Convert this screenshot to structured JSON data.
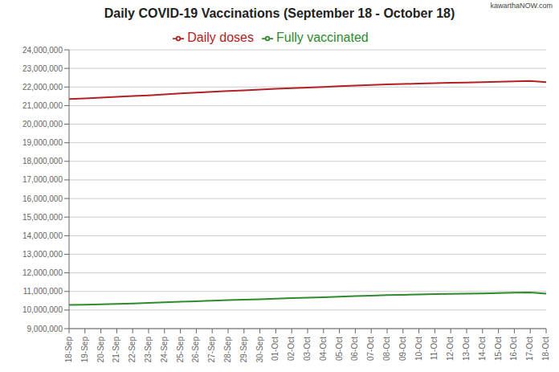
{
  "chart_data": {
    "type": "line",
    "title": "Daily COVID-19 Vaccinations (September 18 - October 18)",
    "annotations": [
      "kawarthaNOW.com"
    ],
    "categories": [
      "18-Sep",
      "19-Sep",
      "20-Sep",
      "21-Sep",
      "22-Sep",
      "23-Sep",
      "24-Sep",
      "25-Sep",
      "26-Sep",
      "27-Sep",
      "28-Sep",
      "29-Sep",
      "30-Sep",
      "01-Oct",
      "02-Oct",
      "03-Oct",
      "04-Oct",
      "05-Oct",
      "06-Oct",
      "07-Oct",
      "08-Oct",
      "09-Oct",
      "10-Oct",
      "11-Oct",
      "12-Oct",
      "13-Oct",
      "14-Oct",
      "15-Oct",
      "16-Oct",
      "17-Oct",
      "18-Oct"
    ],
    "series": [
      {
        "name": "Daily doses",
        "color": "#b22222",
        "values": [
          21350000,
          21390000,
          21430000,
          21470000,
          21510000,
          21550000,
          21600000,
          21650000,
          21700000,
          21740000,
          21780000,
          21820000,
          21860000,
          21900000,
          21940000,
          21970000,
          22000000,
          22040000,
          22080000,
          22110000,
          22140000,
          22160000,
          22185000,
          22205000,
          22225000,
          22240000,
          22260000,
          22285000,
          22305000,
          22320000,
          22260000
        ]
      },
      {
        "name": "Fully vaccinated",
        "color": "#2e8b2e",
        "values": [
          10270000,
          10285000,
          10305000,
          10325000,
          10355000,
          10385000,
          10415000,
          10445000,
          10475000,
          10505000,
          10535000,
          10555000,
          10580000,
          10610000,
          10640000,
          10660000,
          10690000,
          10720000,
          10750000,
          10775000,
          10800000,
          10820000,
          10840000,
          10860000,
          10870000,
          10882000,
          10895000,
          10915000,
          10935000,
          10948000,
          10880000
        ]
      }
    ],
    "ylim": [
      9000000,
      24000000
    ],
    "yticks": [
      {
        "value": 9000000,
        "label": "9,000,000"
      },
      {
        "value": 10000000,
        "label": "10,000,000"
      },
      {
        "value": 11000000,
        "label": "11,000,000"
      },
      {
        "value": 12000000,
        "label": "12,000,000"
      },
      {
        "value": 13000000,
        "label": "13,000,000"
      },
      {
        "value": 14000000,
        "label": "14,000,000"
      },
      {
        "value": 15000000,
        "label": "15,000,000"
      },
      {
        "value": 16000000,
        "label": "16,000,000"
      },
      {
        "value": 17000000,
        "label": "17,000,000"
      },
      {
        "value": 18000000,
        "label": "18,000,000"
      },
      {
        "value": 19000000,
        "label": "19,000,000"
      },
      {
        "value": 20000000,
        "label": "20,000,000"
      },
      {
        "value": 21000000,
        "label": "21,000,000"
      },
      {
        "value": 22000000,
        "label": "22,000,000"
      },
      {
        "value": 23000000,
        "label": "23,000,000"
      },
      {
        "value": 24000000,
        "label": "24,000,000"
      }
    ],
    "grid": true,
    "legend": "top"
  }
}
